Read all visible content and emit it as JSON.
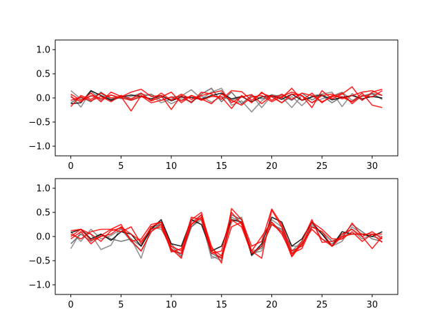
{
  "chart_data": [
    {
      "type": "line",
      "xlim": [
        -1.55,
        32.55
      ],
      "ylim": [
        -1.2,
        1.2
      ],
      "xticks": [
        0,
        5,
        10,
        15,
        20,
        25,
        30
      ],
      "yticks": [
        -1.0,
        -0.5,
        0.0,
        0.5,
        1.0
      ],
      "xtick_labels": [
        "0",
        "5",
        "10",
        "15",
        "20",
        "25",
        "30"
      ],
      "ytick_labels": [
        "−1.0",
        "−0.5",
        "0.0",
        "0.5",
        "1.0"
      ],
      "grid": false,
      "series": [
        {
          "color": "#808080",
          "values": [
            0.15,
            -0.02,
            0.03,
            0.1,
            -0.05,
            0.02,
            -0.03,
            0.08,
            0.05,
            -0.1,
            -0.02,
            0.04,
            0.17,
            -0.02,
            0.12,
            0.2,
            -0.15,
            -0.06,
            -0.29,
            -0.06,
            0.07,
            0.02,
            -0.2,
            0.05,
            -0.1,
            -0.02,
            0.04,
            0.12,
            -0.05,
            0.03,
            0.08,
            -0.02
          ]
        },
        {
          "color": "#808080",
          "values": [
            0.05,
            -0.19,
            0.14,
            -0.05,
            0.06,
            -0.02,
            0.03,
            0.1,
            -0.06,
            0.02,
            -0.12,
            -0.02,
            -0.07,
            0.04,
            -0.09,
            0.03,
            -0.05,
            0.02,
            0.06,
            -0.2,
            0.05,
            -0.1,
            0.03,
            -0.16,
            0.04,
            0.08,
            0.12,
            -0.18,
            0.09,
            -0.05,
            0.1,
            0.05
          ]
        },
        {
          "color": "#606060",
          "values": [
            -0.1,
            0.02,
            -0.08,
            0.12,
            -0.03,
            0.05,
            -0.05,
            0.02,
            0.08,
            -0.05,
            0.02,
            0.03,
            -0.1,
            0.08,
            0.2,
            -0.08,
            0.12,
            -0.12,
            0.05,
            -0.02,
            0.03,
            0.06,
            -0.05,
            0.1,
            -0.04,
            0.05,
            -0.1,
            0.03,
            -0.08,
            0.04,
            0.09,
            -0.03
          ]
        },
        {
          "color": "#000000",
          "values": [
            -0.12,
            -0.1,
            0.15,
            0.05,
            -0.05,
            0.02,
            0.06,
            0.03,
            -0.02,
            0.05,
            -0.06,
            0.02,
            0.01,
            -0.03,
            0.05,
            0.1,
            -0.02,
            0.03,
            -0.08,
            0.02,
            0.05,
            -0.03,
            0.08,
            -0.05,
            0.02,
            0.06,
            -0.04,
            0.01,
            0.05,
            -0.02,
            0.03,
            0.0
          ]
        },
        {
          "color": "#ff0000",
          "values": [
            -0.18,
            0.05,
            -0.03,
            0.1,
            0.0,
            0.02,
            0.12,
            0.18,
            0.03,
            0.05,
            -0.24,
            0.05,
            -0.1,
            0.12,
            0.08,
            -0.03,
            0.15,
            0.13,
            -0.05,
            0.1,
            0.02,
            -0.1,
            0.08,
            0.05,
            -0.2,
            0.15,
            -0.02,
            0.08,
            0.23,
            -0.05,
            0.12,
            0.18
          ]
        },
        {
          "color": "#ff0000",
          "values": [
            0.08,
            -0.05,
            0.1,
            -0.08,
            0.12,
            0.03,
            -0.27,
            0.05,
            -0.05,
            0.1,
            -0.05,
            0.08,
            -0.03,
            0.05,
            0.1,
            0.15,
            -0.1,
            0.02,
            0.07,
            -0.12,
            0.05,
            0.0,
            0.2,
            -0.05,
            0.1,
            -0.1,
            0.05,
            0.02,
            -0.08,
            0.1,
            -0.15,
            -0.2
          ]
        },
        {
          "color": "#ff0000",
          "values": [
            -0.05,
            0.02,
            -0.06,
            0.03,
            -0.08,
            0.05,
            -0.02,
            0.1,
            -0.06,
            0.02,
            0.12,
            -0.1,
            0.05,
            -0.05,
            0.03,
            0.02,
            -0.22,
            0.05,
            -0.1,
            0.12,
            -0.05,
            0.08,
            -0.03,
            0.1,
            0.05,
            -0.08,
            0.02,
            0.1,
            -0.12,
            0.05,
            0.02,
            0.15
          ]
        },
        {
          "color": "#ff0000",
          "values": [
            0.02,
            -0.08,
            0.05,
            -0.02,
            0.06,
            0.0,
            -0.05,
            0.04,
            -0.1,
            -0.05,
            0.02,
            -0.06,
            0.05,
            -0.02,
            -0.12,
            0.08,
            -0.05,
            -0.15,
            0.02,
            0.05,
            -0.08,
            0.03,
            0.12,
            0.05,
            -0.1,
            0.05,
            0.08,
            -0.02,
            0.05,
            0.12,
            0.15,
            0.05
          ]
        }
      ]
    },
    {
      "type": "line",
      "xlim": [
        -1.55,
        32.55
      ],
      "ylim": [
        -1.2,
        1.2
      ],
      "xticks": [
        0,
        5,
        10,
        15,
        20,
        25,
        30
      ],
      "yticks": [
        -1.0,
        -0.5,
        0.0,
        0.5,
        1.0
      ],
      "xtick_labels": [
        "0",
        "5",
        "10",
        "15",
        "20",
        "25",
        "30"
      ],
      "ytick_labels": [
        "−1.0",
        "−0.5",
        "0.0",
        "0.5",
        "1.0"
      ],
      "grid": false,
      "series": [
        {
          "color": "#808080",
          "values": [
            -0.25,
            0.1,
            0.05,
            -0.27,
            -0.18,
            0.2,
            -0.05,
            -0.45,
            0.2,
            0.15,
            -0.2,
            -0.42,
            0.2,
            0.35,
            -0.45,
            -0.4,
            0.3,
            0.4,
            -0.3,
            -0.25,
            0.3,
            0.1,
            -0.2,
            -0.2,
            0.25,
            0.05,
            -0.2,
            -0.1,
            0.2,
            0.05,
            0.0,
            -0.05
          ]
        },
        {
          "color": "#808080",
          "values": [
            0.1,
            -0.1,
            0.15,
            -0.05,
            0.02,
            0.15,
            -0.1,
            -0.3,
            0.1,
            0.3,
            -0.15,
            -0.4,
            0.3,
            0.45,
            -0.4,
            -0.5,
            0.4,
            0.3,
            -0.35,
            -0.3,
            0.35,
            0.2,
            -0.3,
            -0.1,
            0.3,
            -0.05,
            -0.15,
            0.05,
            0.15,
            -0.05,
            0.05,
            0.0
          ]
        },
        {
          "color": "#606060",
          "values": [
            -0.15,
            0.05,
            -0.1,
            0.05,
            -0.05,
            -0.1,
            -0.05,
            -0.2,
            0.2,
            0.25,
            -0.3,
            -0.35,
            0.2,
            0.4,
            -0.35,
            -0.45,
            0.45,
            0.35,
            -0.4,
            -0.2,
            0.25,
            0.15,
            -0.35,
            -0.15,
            0.2,
            0.1,
            -0.1,
            0.0,
            0.25,
            0.1,
            -0.05,
            -0.1
          ]
        },
        {
          "color": "#000000",
          "values": [
            0.08,
            0.15,
            -0.05,
            0.05,
            -0.08,
            0.1,
            0.05,
            -0.2,
            0.15,
            0.35,
            -0.15,
            -0.2,
            0.35,
            0.25,
            -0.3,
            -0.2,
            0.35,
            0.3,
            -0.38,
            -0.15,
            0.4,
            0.3,
            -0.2,
            -0.05,
            0.3,
            0.05,
            -0.2,
            0.1,
            0.05,
            0.05,
            0.0,
            0.1
          ]
        },
        {
          "color": "#ff0000",
          "values": [
            0.12,
            0.15,
            0.05,
            -0.1,
            0.12,
            0.18,
            -0.08,
            -0.3,
            0.1,
            0.25,
            -0.25,
            -0.45,
            0.35,
            0.5,
            -0.3,
            -0.45,
            0.2,
            0.3,
            -0.3,
            -0.45,
            0.55,
            0.2,
            -0.4,
            -0.1,
            0.35,
            -0.12,
            -0.1,
            -0.05,
            0.28,
            0.0,
            -0.25,
            0.0
          ]
        },
        {
          "color": "#ff0000",
          "values": [
            -0.05,
            0.1,
            -0.15,
            0.02,
            0.15,
            0.1,
            0.2,
            -0.15,
            0.2,
            0.3,
            -0.32,
            -0.25,
            0.25,
            0.45,
            -0.2,
            -0.55,
            0.58,
            0.35,
            -0.2,
            -0.1,
            0.57,
            0.25,
            -0.3,
            -0.2,
            0.3,
            0.15,
            -0.05,
            -0.05,
            0.1,
            -0.1,
            0.05,
            0.05
          ]
        },
        {
          "color": "#ff0000",
          "values": [
            0.05,
            -0.05,
            0.1,
            0.15,
            0.15,
            0.25,
            -0.1,
            -0.05,
            0.25,
            0.3,
            -0.2,
            -0.3,
            0.4,
            0.35,
            -0.35,
            -0.3,
            0.5,
            0.25,
            -0.3,
            0.0,
            0.3,
            0.05,
            -0.35,
            -0.25,
            0.2,
            0.1,
            -0.2,
            0.05,
            0.15,
            0.0,
            0.1,
            -0.05
          ]
        },
        {
          "color": "#ff0000",
          "values": [
            0.0,
            0.15,
            -0.08,
            0.0,
            0.05,
            0.2,
            0.05,
            -0.1,
            0.15,
            0.2,
            -0.28,
            -0.35,
            0.25,
            0.4,
            -0.25,
            -0.4,
            0.35,
            0.2,
            -0.35,
            -0.2,
            0.25,
            0.1,
            -0.42,
            -0.15,
            0.15,
            -0.05,
            -0.2,
            0.0,
            0.05,
            0.05,
            0.05,
            -0.12
          ]
        }
      ]
    }
  ]
}
